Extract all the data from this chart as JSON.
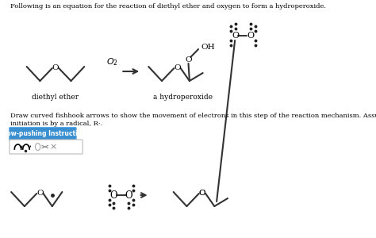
{
  "title_text": "Following is an equation for the reaction of diethyl ether and oxygen to form a hydroperoxide.",
  "instruction_text1": "Draw curved fishhook arrows to show the movement of electrons in this step of the reaction mechanism. Assume that",
  "instruction_text2": "initiation is by a radical, R·.",
  "button_text": "Arrow-pushing Instructions",
  "button_color": "#3a8fd0",
  "button_border": "#5aaae8",
  "label_diethyl": "diethyl ether",
  "label_hydro": "a hydroperoxide",
  "background": "#ffffff",
  "text_color": "#000000",
  "mol_gray": "#555555"
}
